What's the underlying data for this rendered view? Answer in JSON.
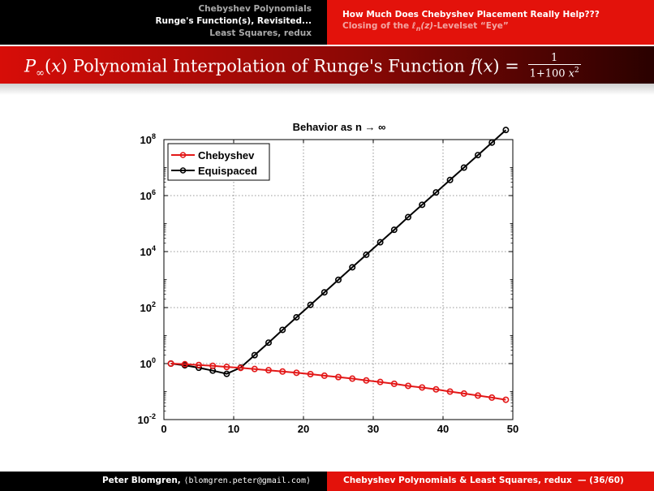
{
  "header": {
    "sections": [
      "Chebyshev Polynomials",
      "Runge's Function(s), Revisited...",
      "Least Squares, redux"
    ],
    "active_section": 1,
    "subsections": [
      "How Much Does Chebyshev Placement Really Help???",
      "Closing of the ℓn(z)-Levelset “Eye”"
    ],
    "active_subsection": 0
  },
  "frame": {
    "title_prefix": "P∞(x) Polynomial Interpolation of Runge's Function",
    "title_fx": "f(x) =",
    "frac_num": "1",
    "frac_den": "1+100 x²"
  },
  "colors": {
    "accent_red": "#e3120b",
    "chebyshev": "#e31818",
    "equispaced": "#000000"
  },
  "chart_data": {
    "type": "line",
    "title": "Behavior as n → ∞",
    "xlabel": "",
    "ylabel": "",
    "xlim": [
      0,
      50
    ],
    "ylim": [
      0.01,
      100000000
    ],
    "yscale": "log",
    "xticks": [
      "0",
      "10",
      "20",
      "30",
      "40",
      "50"
    ],
    "yticks": [
      "10^-2",
      "10^0",
      "10^2",
      "10^4",
      "10^6",
      "10^8"
    ],
    "grid": true,
    "legend_position": "top-left",
    "x": [
      1,
      3,
      5,
      7,
      9,
      11,
      13,
      15,
      17,
      19,
      21,
      23,
      25,
      27,
      29,
      31,
      33,
      35,
      37,
      39,
      41,
      43,
      45,
      47,
      49
    ],
    "series": [
      {
        "name": "Chebyshev",
        "color": "#e31818",
        "values": [
          1.0,
          0.95,
          0.89,
          0.83,
          0.76,
          0.7,
          0.64,
          0.58,
          0.52,
          0.47,
          0.42,
          0.37,
          0.33,
          0.29,
          0.25,
          0.22,
          0.19,
          0.16,
          0.14,
          0.12,
          0.1,
          0.085,
          0.072,
          0.061,
          0.051
        ]
      },
      {
        "name": "Equispaced",
        "color": "#000000",
        "values": [
          1.0,
          0.87,
          0.71,
          0.56,
          0.43,
          0.72,
          2.0,
          5.6,
          16,
          45,
          125,
          350,
          980,
          2750,
          7700,
          21500,
          60000,
          170000,
          470000,
          1300000,
          3600000,
          10000000,
          28000000,
          78000000,
          220000000
        ]
      }
    ]
  },
  "footer": {
    "author": "Peter Blomgren,",
    "email": "⟨blomgren.peter@gmail.com⟩",
    "short_title": "Chebyshev Polynomials & Least Squares, redux",
    "page": "— (36/60)"
  }
}
